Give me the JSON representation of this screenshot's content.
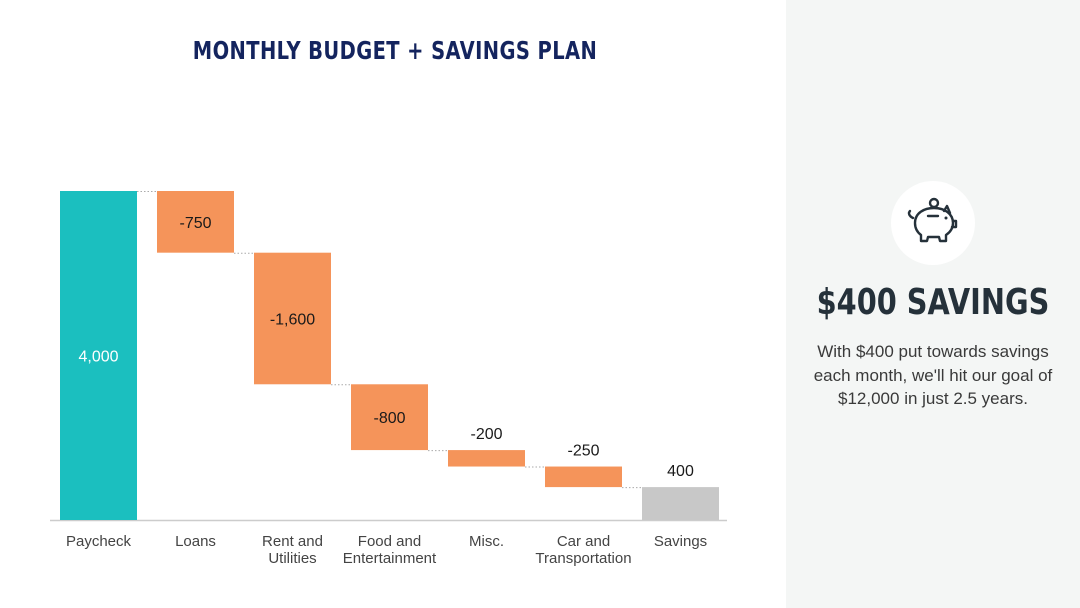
{
  "title": "MONTHLY BUDGET + SAVINGS PLAN",
  "chart_data": {
    "type": "waterfall",
    "title": "MONTHLY BUDGET + SAVINGS PLAN",
    "categories": [
      [
        "Paycheck"
      ],
      [
        "Loans"
      ],
      [
        "Rent and",
        "Utilities"
      ],
      [
        "Food and",
        "Entertainment"
      ],
      [
        "Misc."
      ],
      [
        "Car and",
        "Transportation"
      ],
      [
        "Savings"
      ]
    ],
    "values": [
      4000,
      -750,
      -1600,
      -800,
      -200,
      -250,
      400
    ],
    "value_labels": [
      "4,000",
      "-750",
      "-1,600",
      "-800",
      "-200",
      "-250",
      "400"
    ],
    "bar_kinds": [
      "total",
      "decrease",
      "decrease",
      "decrease",
      "decrease",
      "decrease",
      "total"
    ],
    "ylim": [
      0,
      4000
    ],
    "grid": false,
    "colors": {
      "total": "#1bbfbf",
      "decrease": "#f5945a",
      "final": "#c8c8c8",
      "connector": "#aaaaaa",
      "baseline": "#cccccc"
    }
  },
  "side": {
    "icon": "piggy-bank-icon",
    "heading": "$400 SAVINGS",
    "body": "With $400 put towards savings each month, we'll hit our goal of $12,000 in just 2.5 years."
  }
}
